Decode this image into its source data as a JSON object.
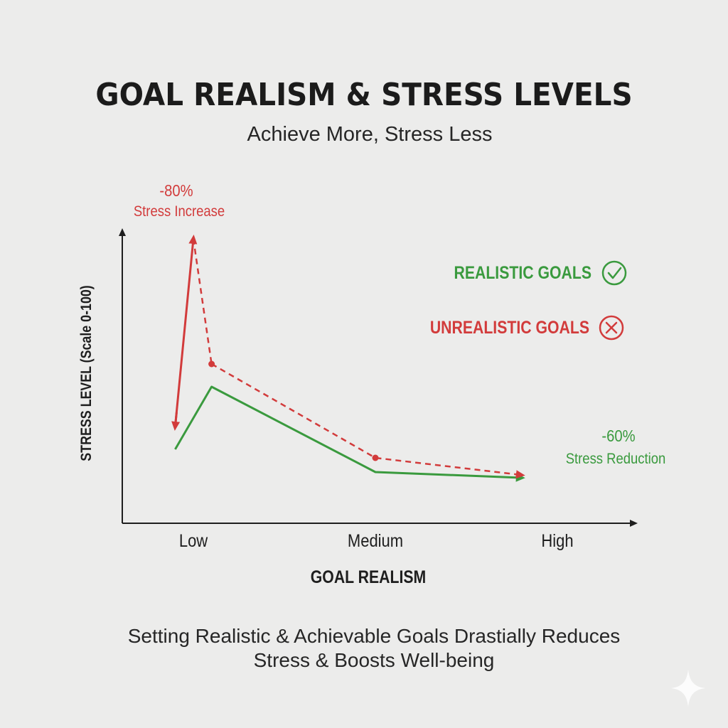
{
  "header": {
    "title": "GOAL REALISM & STRESS LEVELS",
    "subtitle": "Achieve More, Stress Less"
  },
  "footer": {
    "line1": "Setting Realistic & Achievable Goals Drastially Reduces",
    "line2": "Stress & Boosts Well-being"
  },
  "colors": {
    "realistic": "#3a9a3e",
    "unrealistic": "#d23b3b",
    "axis": "#1e1e1e"
  },
  "chart_data": {
    "type": "line",
    "xlabel": "GOAL REALISM",
    "ylabel": "STRESS LEVEL (Scale 0-100)",
    "x_ticks": [
      "Low",
      "Medium",
      "High"
    ],
    "ylim": [
      0,
      100
    ],
    "grid": false,
    "legend_placement": "right",
    "legend": [
      {
        "label": "REALISTIC GOALS",
        "icon": "check-circle-icon",
        "color": "#3a9a3e"
      },
      {
        "label": "UNREALISTIC GOALS",
        "icon": "x-circle-icon",
        "color": "#d23b3b"
      }
    ],
    "series": [
      {
        "name": "REALISTIC GOALS",
        "style": "solid",
        "color": "#3a9a3e",
        "points": [
          [
            0.9,
            26
          ],
          [
            1.1,
            48
          ],
          [
            2.0,
            18
          ],
          [
            2.8,
            16
          ]
        ]
      },
      {
        "name": "UNREALISTIC GOALS",
        "style": "dashed",
        "color": "#d23b3b",
        "points": [
          [
            1.1,
            56
          ],
          [
            2.0,
            23
          ],
          [
            2.8,
            17
          ]
        ]
      }
    ],
    "spike": {
      "points": [
        [
          0.9,
          34
        ],
        [
          1.0,
          100
        ],
        [
          1.1,
          56
        ]
      ],
      "color": "#d23b3b"
    },
    "annotations": [
      {
        "value": "-80%",
        "text": "Stress Increase",
        "color": "#d23b3b",
        "at": [
          1.0,
          100
        ]
      },
      {
        "value": "-60%",
        "text": "Stress Reduction",
        "color": "#3a9a3e",
        "at": [
          2.8,
          16
        ]
      }
    ]
  }
}
